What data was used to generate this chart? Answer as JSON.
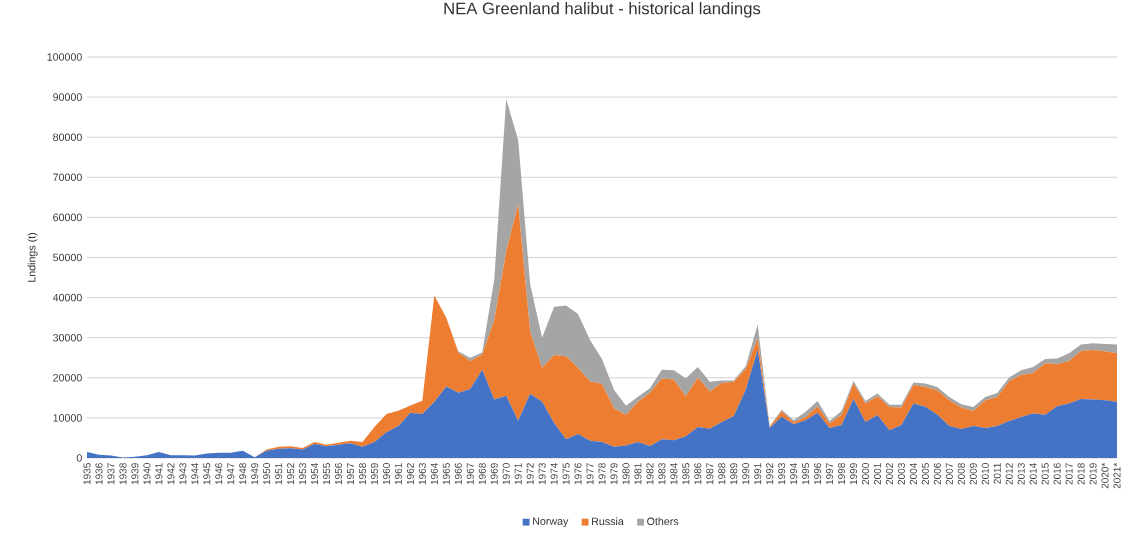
{
  "chart_data": {
    "type": "area",
    "title": "NEA Greenland halibut - historical landings",
    "ylabel": "Lndings (t)",
    "categories": [
      "1935",
      "1936",
      "1937",
      "1938",
      "1939",
      "1940",
      "1941",
      "1942",
      "1943",
      "1944",
      "1945",
      "1946",
      "1947",
      "1948",
      "1949",
      "1950",
      "1951",
      "1952",
      "1953",
      "1954",
      "1955",
      "1956",
      "1957",
      "1958",
      "1959",
      "1960",
      "1961",
      "1962",
      "1963",
      "1964",
      "1965",
      "1966",
      "1967",
      "1968",
      "1969",
      "1970",
      "1971",
      "1972",
      "1973",
      "1974",
      "1975",
      "1976",
      "1977",
      "1978",
      "1979",
      "1980",
      "1981",
      "1982",
      "1983",
      "1984",
      "1985",
      "1986",
      "1987",
      "1988",
      "1989",
      "1990",
      "1991",
      "1992",
      "1993",
      "1994",
      "1995",
      "1996",
      "1997",
      "1998",
      "1999",
      "2000",
      "2001",
      "2002",
      "2003",
      "2004",
      "2005",
      "2006",
      "2007",
      "2008",
      "2009",
      "2010",
      "2011",
      "2012",
      "2013",
      "2014",
      "2015",
      "2016",
      "2017",
      "2018",
      "2019",
      "2020*",
      "2021*"
    ],
    "series": [
      {
        "name": "Norway",
        "color": "#4472c4",
        "values": [
          1500,
          800,
          600,
          100,
          300,
          700,
          1500,
          700,
          700,
          600,
          1100,
          1300,
          1300,
          1800,
          200,
          1800,
          2300,
          2400,
          2100,
          3500,
          2900,
          3300,
          3700,
          2800,
          4000,
          6400,
          8000,
          11300,
          11000,
          14000,
          17800,
          16300,
          17200,
          22000,
          14600,
          15500,
          9300,
          16000,
          14000,
          8700,
          4700,
          6000,
          4300,
          4000,
          2800,
          3100,
          4000,
          3000,
          4700,
          4400,
          5400,
          7700,
          7300,
          9000,
          10500,
          17000,
          27000,
          7500,
          10300,
          8400,
          9400,
          11300,
          7500,
          8200,
          14700,
          9000,
          10700,
          6900,
          8200,
          13600,
          12800,
          10800,
          8000,
          7200,
          8000,
          7500,
          8000,
          9200,
          10200,
          11100,
          10800,
          12900,
          13600,
          14700,
          14600,
          14400,
          14000
        ]
      },
      {
        "name": "Russia",
        "color": "#ed7d31",
        "values": [
          0,
          0,
          0,
          0,
          0,
          0,
          0,
          0,
          0,
          0,
          0,
          0,
          0,
          0,
          0,
          300,
          500,
          500,
          400,
          500,
          400,
          500,
          600,
          1200,
          3700,
          4600,
          3800,
          1800,
          3300,
          26500,
          17200,
          10000,
          7000,
          3800,
          19800,
          36000,
          54000,
          15500,
          8500,
          17000,
          20700,
          16500,
          14800,
          14500,
          9600,
          7600,
          10000,
          13300,
          15100,
          15200,
          10000,
          12300,
          9300,
          9700,
          8500,
          5200,
          2800,
          300,
          1300,
          500,
          800,
          1600,
          1100,
          2600,
          3900,
          4600,
          4700,
          5800,
          4400,
          4600,
          4900,
          6100,
          6400,
          5400,
          3700,
          6900,
          7200,
          10000,
          10500,
          10100,
          12800,
          10500,
          10600,
          12000,
          12300,
          12200,
          12100
        ]
      },
      {
        "name": "Others",
        "color": "#a5a5a5",
        "values": [
          0,
          0,
          0,
          0,
          0,
          0,
          0,
          0,
          0,
          0,
          0,
          0,
          0,
          0,
          0,
          0,
          0,
          0,
          0,
          0,
          0,
          0,
          0,
          0,
          0,
          0,
          0,
          0,
          0,
          0,
          0,
          300,
          800,
          500,
          10000,
          38000,
          16000,
          11800,
          7500,
          12000,
          12600,
          13400,
          10300,
          6200,
          4600,
          2300,
          1300,
          1100,
          2200,
          2300,
          4500,
          2700,
          2400,
          600,
          300,
          700,
          3500,
          100,
          400,
          500,
          1300,
          1300,
          600,
          900,
          600,
          600,
          700,
          600,
          700,
          600,
          900,
          800,
          800,
          800,
          1000,
          800,
          1000,
          900,
          1200,
          1500,
          1100,
          1400,
          1900,
          1600,
          1700,
          1800,
          2200
        ]
      }
    ],
    "stacked": true,
    "ylim": [
      0,
      100000
    ],
    "yticks": [
      0,
      10000,
      20000,
      30000,
      40000,
      50000,
      60000,
      70000,
      80000,
      90000,
      100000
    ],
    "grid": "y",
    "legend": "bottom"
  }
}
